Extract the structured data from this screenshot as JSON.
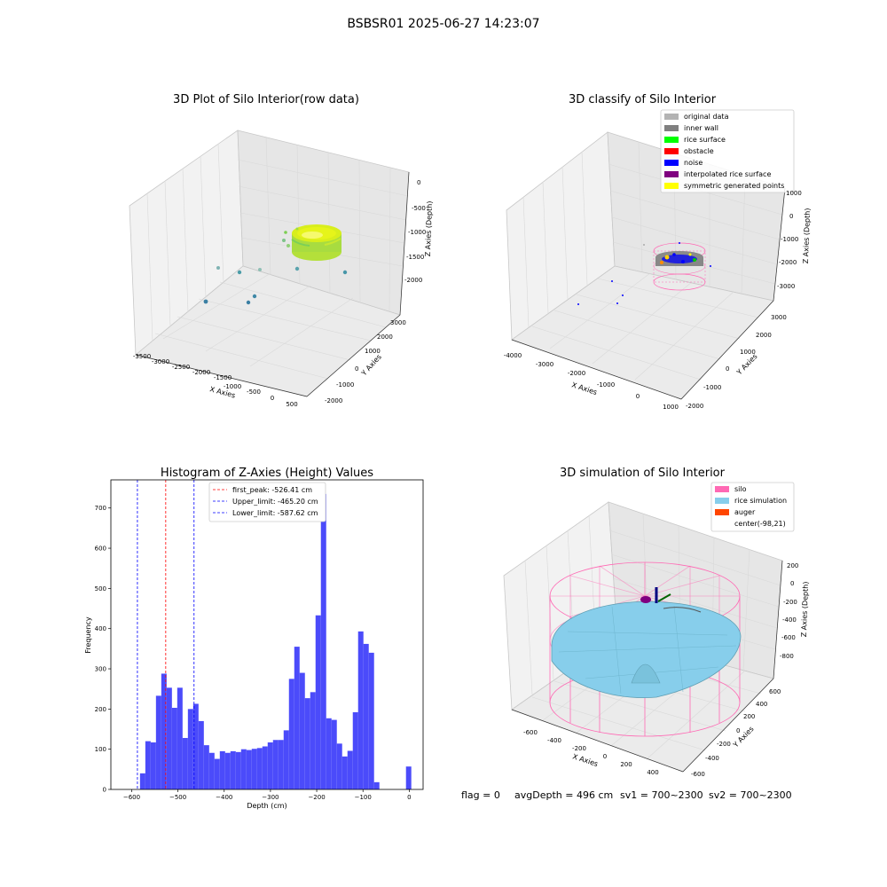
{
  "suptitle": "BSBSR01 2025-06-27 14:23:07",
  "colors": {
    "pane_left": "#f2f2f2",
    "pane_right": "#e6e6e6",
    "pane_floor": "#ebebeb",
    "grid": "#dcdcdc",
    "hist_bar": "#4b4bfa",
    "first_peak_line": "#ff0000",
    "limit_lines": "#0000ff",
    "silo_wire": "#ff69b4",
    "rice_surface": "#87ceeb",
    "rice_edge": "#5f9fb4"
  },
  "panel1": {
    "title": "3D Plot of Silo Interior(row data)",
    "xlabel": "X Axies",
    "ylabel": "Y Axies",
    "zlabel": "Z Axies (Depth)",
    "xticks": [
      "-3500",
      "-3000",
      "-2500",
      "-2000",
      "-1500",
      "-1000",
      "-500",
      "0",
      "500"
    ],
    "yticks": [
      "-2000",
      "-1000",
      "0",
      "1000",
      "2000",
      "3000"
    ],
    "zticks": [
      "0",
      "-500",
      "-1000",
      "-1500",
      "-2000"
    ]
  },
  "panel2": {
    "title": "3D classify of Silo Interior",
    "xlabel": "X Axies",
    "ylabel": "Y Axies",
    "zlabel": "Z Axies (Depth)",
    "xticks": [
      "-4000",
      "-3000",
      "-2000",
      "-1000",
      "0",
      "1000"
    ],
    "yticks": [
      "-2000",
      "-1000",
      "0",
      "1000",
      "2000",
      "3000"
    ],
    "zticks": [
      "1000",
      "0",
      "-1000",
      "-2000",
      "-3000"
    ],
    "legend": [
      {
        "label": "original data",
        "color": "#b3b3b3"
      },
      {
        "label": "inner wall",
        "color": "#808080"
      },
      {
        "label": "rice surface",
        "color": "#00ff00"
      },
      {
        "label": "obstacle",
        "color": "#ff0000"
      },
      {
        "label": "noise",
        "color": "#0000ff"
      },
      {
        "label": "interpolated rice surface",
        "color": "#800080"
      },
      {
        "label": "symmetric generated points",
        "color": "#ffff00"
      }
    ]
  },
  "panel4": {
    "title": "3D simulation of Silo Interior",
    "xlabel": "X Axies",
    "ylabel": "Y Axies",
    "zlabel": "Z Axies (Depth)",
    "xticks": [
      "-600",
      "-400",
      "-200",
      "0",
      "200",
      "400"
    ],
    "yticks": [
      "-600",
      "-400",
      "-200",
      "0",
      "200",
      "400",
      "600"
    ],
    "zticks": [
      "200",
      "0",
      "-200",
      "-400",
      "-600",
      "-800"
    ],
    "legend": [
      {
        "label": "silo",
        "color": "#ff69b4"
      },
      {
        "label": "rice simulation",
        "color": "#87ceeb"
      },
      {
        "label": "auger",
        "color": "#ff4500"
      },
      {
        "label": "center(-98,21)",
        "color": ""
      }
    ]
  },
  "footer": {
    "flag": "flag = 0",
    "avg_depth": "avgDepth = 496 cm",
    "sv1": "sv1 = 700~2300",
    "sv2": "sv2 = 700~2300"
  },
  "chart_data": {
    "type": "bar",
    "title": "Histogram of Z-Axies (Height) Values",
    "xlabel": "Depth (cm)",
    "ylabel": "Frequency",
    "xlim": [
      -645,
      30
    ],
    "ylim": [
      0,
      770
    ],
    "xticks": [
      -600,
      -500,
      -400,
      -300,
      -200,
      -100,
      0
    ],
    "yticks": [
      0,
      100,
      200,
      300,
      400,
      500,
      600,
      700
    ],
    "bin_width": 11.5,
    "bin_starts": [
      -582,
      -570.5,
      -559,
      -547.5,
      -536,
      -524.5,
      -513,
      -501.5,
      -490,
      -478.5,
      -467,
      -455.5,
      -444,
      -432.5,
      -421,
      -409.5,
      -398,
      -386.5,
      -375,
      -363.5,
      -352,
      -340.5,
      -329,
      -317.5,
      -306,
      -294.5,
      -283,
      -271.5,
      -260,
      -248.5,
      -237,
      -225.5,
      -214,
      -202.5,
      -191,
      -179.5,
      -168,
      -156.5,
      -145,
      -133.5,
      -122,
      -110.5,
      -99,
      -87.5,
      -76,
      -64.5,
      -53,
      -41.5,
      -30,
      -18.5,
      -7
    ],
    "values": [
      40,
      120,
      117,
      233,
      288,
      253,
      203,
      253,
      128,
      200,
      213,
      170,
      110,
      91,
      76,
      95,
      91,
      95,
      93,
      100,
      98,
      101,
      103,
      107,
      117,
      123,
      123,
      147,
      275,
      355,
      290,
      227,
      242,
      433,
      735,
      177,
      173,
      114,
      82,
      96,
      192,
      393,
      362,
      340,
      18,
      0,
      0,
      0,
      0,
      0,
      57
    ],
    "vlines": [
      {
        "x": -526.41,
        "label": "first_peak: -526.41 cm",
        "color": "#ff0000"
      },
      {
        "x": -465.2,
        "label": "Upper_limit: -465.20 cm",
        "color": "#0000ff"
      },
      {
        "x": -587.62,
        "label": "Lower_limit: -587.62 cm",
        "color": "#0000ff"
      }
    ],
    "legend_placement": "top-center",
    "grid": false
  }
}
